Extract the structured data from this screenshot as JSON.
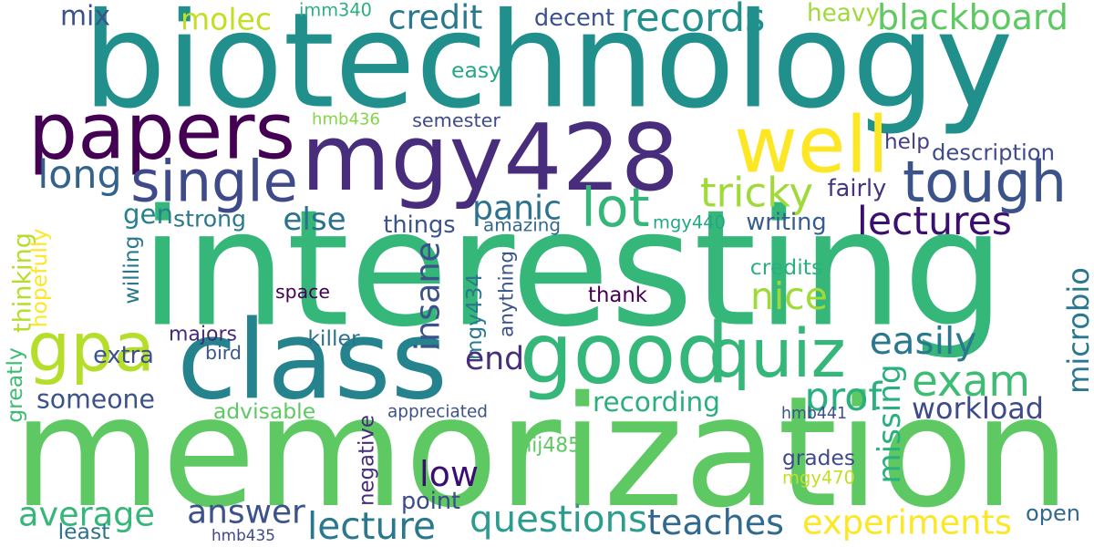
{
  "words": [
    {
      "text": "biotechnology",
      "color": "#21908d"
    },
    {
      "text": "interesting",
      "color": "#35b779"
    },
    {
      "text": "memorization",
      "color": "#5ec962"
    },
    {
      "text": "mgy428",
      "color": "#472d7b"
    },
    {
      "text": "papers",
      "color": "#440154"
    },
    {
      "text": "class",
      "color": "#25838e"
    },
    {
      "text": "gpa",
      "color": "#b5de2b"
    },
    {
      "text": "good",
      "color": "#35b779"
    },
    {
      "text": "well",
      "color": "#fde725"
    },
    {
      "text": "tough",
      "color": "#3b528b"
    },
    {
      "text": "quiz",
      "color": "#35b779"
    },
    {
      "text": "exam",
      "color": "#3fbc73"
    },
    {
      "text": "single",
      "color": "#3e4a89"
    },
    {
      "text": "lot",
      "color": "#35b779"
    },
    {
      "text": "tricky",
      "color": "#a0da39"
    },
    {
      "text": "lectures",
      "color": "#3b0f70"
    },
    {
      "text": "records",
      "color": "#21908d"
    },
    {
      "text": "blackboard",
      "color": "#5ec962"
    },
    {
      "text": "credit",
      "color": "#2a788e"
    },
    {
      "text": "molec",
      "color": "#c2df23"
    },
    {
      "text": "mix",
      "color": "#3b528b"
    },
    {
      "text": "imm340",
      "color": "#2ab07f"
    },
    {
      "text": "decent",
      "color": "#3b528b"
    },
    {
      "text": "heavy",
      "color": "#9fda3a"
    },
    {
      "text": "easy",
      "color": "#22a884"
    },
    {
      "text": "long",
      "color": "#33638d"
    },
    {
      "text": "hmb436",
      "color": "#86d549"
    },
    {
      "text": "semester",
      "color": "#3e4a89"
    },
    {
      "text": "help",
      "color": "#433e85"
    },
    {
      "text": "description",
      "color": "#3e4a89"
    },
    {
      "text": "panic",
      "color": "#2c728e"
    },
    {
      "text": "fairly",
      "color": "#46327e"
    },
    {
      "text": "gen",
      "color": "#26828e"
    },
    {
      "text": "strong",
      "color": "#2a788e"
    },
    {
      "text": "else",
      "color": "#2c728e"
    },
    {
      "text": "things",
      "color": "#3b528b"
    },
    {
      "text": "amazing",
      "color": "#31688e"
    },
    {
      "text": "mgy440",
      "color": "#22a884"
    },
    {
      "text": "writing",
      "color": "#365c8d"
    },
    {
      "text": "thinking",
      "color": "#b5de2b"
    },
    {
      "text": "hopefully",
      "color": "#fde725"
    },
    {
      "text": "willing",
      "color": "#2a788e"
    },
    {
      "text": "insane",
      "color": "#3b528b"
    },
    {
      "text": "nice",
      "color": "#a0da39"
    },
    {
      "text": "credits",
      "color": "#2ab07f"
    },
    {
      "text": "space",
      "color": "#440154"
    },
    {
      "text": "thank",
      "color": "#440154"
    },
    {
      "text": "mgy434",
      "color": "#2a788e"
    },
    {
      "text": "anything",
      "color": "#3b528b"
    },
    {
      "text": "microbio",
      "color": "#2a788e"
    },
    {
      "text": "easily",
      "color": "#2a788e"
    },
    {
      "text": "majors",
      "color": "#482878"
    },
    {
      "text": "killer",
      "color": "#2c728e"
    },
    {
      "text": "end",
      "color": "#472d7b"
    },
    {
      "text": "greatly",
      "color": "#3fbc73"
    },
    {
      "text": "extra",
      "color": "#3b528b"
    },
    {
      "text": "bird",
      "color": "#39568c"
    },
    {
      "text": "someone",
      "color": "#3b528b"
    },
    {
      "text": "recording",
      "color": "#2ab07f"
    },
    {
      "text": "prof",
      "color": "#2ab07f"
    },
    {
      "text": "missing",
      "color": "#2ab07f"
    },
    {
      "text": "workload",
      "color": "#3e4a89"
    },
    {
      "text": "advisable",
      "color": "#5ec962"
    },
    {
      "text": "appreciated",
      "color": "#3b528b"
    },
    {
      "text": "hmb441",
      "color": "#3b528b"
    },
    {
      "text": "negative",
      "color": "#472d7b"
    },
    {
      "text": "mij485",
      "color": "#5ec962"
    },
    {
      "text": "low",
      "color": "#3b0f70"
    },
    {
      "text": "grades",
      "color": "#3e4a89"
    },
    {
      "text": "mgy470",
      "color": "#c2df23"
    },
    {
      "text": "average",
      "color": "#35b779"
    },
    {
      "text": "answer",
      "color": "#3b528b"
    },
    {
      "text": "point",
      "color": "#3e4a89"
    },
    {
      "text": "lecture",
      "color": "#2a788e"
    },
    {
      "text": "questions",
      "color": "#2a9d8f"
    },
    {
      "text": "teaches",
      "color": "#31688e"
    },
    {
      "text": "experiments",
      "color": "#fde725"
    },
    {
      "text": "open",
      "color": "#31688e"
    },
    {
      "text": "least",
      "color": "#2c728e"
    },
    {
      "text": "hmb435",
      "color": "#3e4a89"
    }
  ]
}
